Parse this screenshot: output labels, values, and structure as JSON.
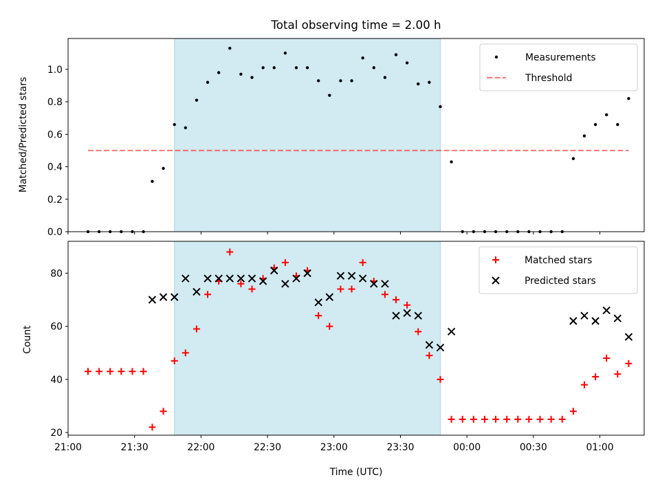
{
  "title": "Total observing time = 2.00 h",
  "colors": {
    "measurements": "#000000",
    "threshold": "#ff0000",
    "matched": "#ff0000",
    "predicted": "#000000",
    "observing_band": "#add8e6"
  },
  "chart_data": [
    {
      "type": "scatter",
      "ylabel": "Matched/Predicted stars",
      "xlabel": "",
      "ylim": [
        0,
        1.19
      ],
      "yticks": [
        0.0,
        0.2,
        0.4,
        0.6,
        0.8,
        1.0
      ],
      "ytick_labels": [
        "0.0",
        "0.2",
        "0.4",
        "0.6",
        "0.8",
        "1.0"
      ],
      "x_range": [
        "21:00",
        "01:20"
      ],
      "observing_band": {
        "start": "21:48",
        "end": "23:48"
      },
      "grid": false,
      "legend_position": "upper right",
      "series": [
        {
          "name": "Measurements",
          "marker": "dot",
          "points": [
            [
              "21:09",
              0.0
            ],
            [
              "21:14",
              0.0
            ],
            [
              "21:19",
              0.0
            ],
            [
              "21:24",
              0.0
            ],
            [
              "21:29",
              0.0
            ],
            [
              "21:34",
              0.0
            ],
            [
              "21:38",
              0.31
            ],
            [
              "21:43",
              0.39
            ],
            [
              "21:48",
              0.66
            ],
            [
              "21:53",
              0.64
            ],
            [
              "21:58",
              0.81
            ],
            [
              "22:03",
              0.92
            ],
            [
              "22:08",
              0.98
            ],
            [
              "22:13",
              1.13
            ],
            [
              "22:18",
              0.97
            ],
            [
              "22:23",
              0.95
            ],
            [
              "22:28",
              1.01
            ],
            [
              "22:33",
              1.01
            ],
            [
              "22:38",
              1.1
            ],
            [
              "22:43",
              1.01
            ],
            [
              "22:48",
              1.01
            ],
            [
              "22:53",
              0.93
            ],
            [
              "22:58",
              0.84
            ],
            [
              "23:03",
              0.93
            ],
            [
              "23:08",
              0.93
            ],
            [
              "23:13",
              1.07
            ],
            [
              "23:18",
              1.01
            ],
            [
              "23:23",
              0.95
            ],
            [
              "23:28",
              1.09
            ],
            [
              "23:33",
              1.04
            ],
            [
              "23:38",
              0.91
            ],
            [
              "23:43",
              0.92
            ],
            [
              "23:48",
              0.77
            ],
            [
              "23:53",
              0.43
            ],
            [
              "23:58",
              0.0
            ],
            [
              "00:03",
              0.0
            ],
            [
              "00:08",
              0.0
            ],
            [
              "00:13",
              0.0
            ],
            [
              "00:18",
              0.0
            ],
            [
              "00:23",
              0.0
            ],
            [
              "00:28",
              0.0
            ],
            [
              "00:33",
              0.0
            ],
            [
              "00:38",
              0.0
            ],
            [
              "00:43",
              0.0
            ],
            [
              "00:48",
              0.45
            ],
            [
              "00:53",
              0.59
            ],
            [
              "00:58",
              0.66
            ],
            [
              "01:03",
              0.72
            ],
            [
              "01:08",
              0.66
            ],
            [
              "01:13",
              0.82
            ]
          ]
        },
        {
          "name": "Threshold",
          "marker": "dashed-line",
          "points": [
            [
              "21:09",
              0.5
            ],
            [
              "01:13",
              0.5
            ]
          ]
        }
      ]
    },
    {
      "type": "scatter",
      "ylabel": "Count",
      "xlabel": "Time (UTC)",
      "ylim": [
        19,
        92
      ],
      "yticks": [
        20,
        40,
        60,
        80
      ],
      "ytick_labels": [
        "20",
        "40",
        "60",
        "80"
      ],
      "x_range": [
        "21:00",
        "01:20"
      ],
      "xticks": [
        "21:00",
        "21:30",
        "22:00",
        "22:30",
        "23:00",
        "23:30",
        "00:00",
        "00:30",
        "01:00"
      ],
      "xtick_labels": [
        "21:00",
        "21:30",
        "22:00",
        "22:30",
        "23:00",
        "23:30",
        "00:00",
        "00:30",
        "01:00"
      ],
      "observing_band": {
        "start": "21:48",
        "end": "23:48"
      },
      "grid": false,
      "legend_position": "upper right",
      "series": [
        {
          "name": "Matched stars",
          "marker": "plus",
          "points": [
            [
              "21:09",
              43
            ],
            [
              "21:14",
              43
            ],
            [
              "21:19",
              43
            ],
            [
              "21:24",
              43
            ],
            [
              "21:29",
              43
            ],
            [
              "21:34",
              43
            ],
            [
              "21:38",
              22
            ],
            [
              "21:43",
              28
            ],
            [
              "21:48",
              47
            ],
            [
              "21:53",
              50
            ],
            [
              "21:58",
              59
            ],
            [
              "22:03",
              72
            ],
            [
              "22:08",
              77
            ],
            [
              "22:13",
              88
            ],
            [
              "22:18",
              76
            ],
            [
              "22:23",
              74
            ],
            [
              "22:28",
              78
            ],
            [
              "22:33",
              82
            ],
            [
              "22:38",
              84
            ],
            [
              "22:43",
              79
            ],
            [
              "22:48",
              81
            ],
            [
              "22:53",
              64
            ],
            [
              "22:58",
              60
            ],
            [
              "23:03",
              74
            ],
            [
              "23:08",
              74
            ],
            [
              "23:13",
              84
            ],
            [
              "23:18",
              77
            ],
            [
              "23:23",
              72
            ],
            [
              "23:28",
              70
            ],
            [
              "23:33",
              68
            ],
            [
              "23:38",
              58
            ],
            [
              "23:43",
              49
            ],
            [
              "23:48",
              40
            ],
            [
              "23:53",
              25
            ],
            [
              "23:58",
              25
            ],
            [
              "00:03",
              25
            ],
            [
              "00:08",
              25
            ],
            [
              "00:13",
              25
            ],
            [
              "00:18",
              25
            ],
            [
              "00:23",
              25
            ],
            [
              "00:28",
              25
            ],
            [
              "00:33",
              25
            ],
            [
              "00:38",
              25
            ],
            [
              "00:43",
              25
            ],
            [
              "00:48",
              28
            ],
            [
              "00:53",
              38
            ],
            [
              "00:58",
              41
            ],
            [
              "01:03",
              48
            ],
            [
              "01:08",
              42
            ],
            [
              "01:13",
              46
            ]
          ]
        },
        {
          "name": "Predicted stars",
          "marker": "x",
          "points": [
            [
              "21:38",
              70
            ],
            [
              "21:43",
              71
            ],
            [
              "21:48",
              71
            ],
            [
              "21:53",
              78
            ],
            [
              "21:58",
              73
            ],
            [
              "22:03",
              78
            ],
            [
              "22:08",
              78
            ],
            [
              "22:13",
              78
            ],
            [
              "22:18",
              78
            ],
            [
              "22:23",
              78
            ],
            [
              "22:28",
              77
            ],
            [
              "22:33",
              81
            ],
            [
              "22:38",
              76
            ],
            [
              "22:43",
              78
            ],
            [
              "22:48",
              80
            ],
            [
              "22:53",
              69
            ],
            [
              "22:58",
              71
            ],
            [
              "23:03",
              79
            ],
            [
              "23:08",
              79
            ],
            [
              "23:13",
              78
            ],
            [
              "23:18",
              76
            ],
            [
              "23:23",
              76
            ],
            [
              "23:28",
              64
            ],
            [
              "23:33",
              65
            ],
            [
              "23:38",
              64
            ],
            [
              "23:43",
              53
            ],
            [
              "23:48",
              52
            ],
            [
              "23:53",
              58
            ],
            [
              "00:48",
              62
            ],
            [
              "00:53",
              64
            ],
            [
              "00:58",
              62
            ],
            [
              "01:03",
              66
            ],
            [
              "01:08",
              63
            ],
            [
              "01:13",
              56
            ]
          ]
        }
      ]
    }
  ]
}
